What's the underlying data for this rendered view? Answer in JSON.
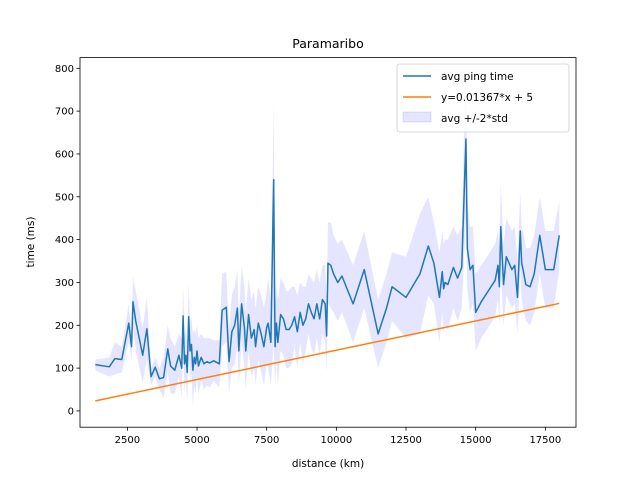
{
  "chart_data": {
    "type": "line",
    "title": "Paramaribo",
    "xlabel": "distance (km)",
    "ylabel": "time (ms)",
    "xlim": [
      800,
      18600
    ],
    "ylim": [
      -38,
      825
    ],
    "x_ticks": [
      2500,
      5000,
      7500,
      10000,
      12500,
      15000,
      17500
    ],
    "x_tick_labels": [
      "2500",
      "5000",
      "7500",
      "10000",
      "12500",
      "15000",
      "17500"
    ],
    "y_ticks": [
      0,
      100,
      200,
      300,
      400,
      500,
      600,
      700,
      800
    ],
    "y_tick_labels": [
      "0",
      "100",
      "200",
      "300",
      "400",
      "500",
      "600",
      "700",
      "800"
    ],
    "grid": false,
    "legend_position": "top-right",
    "legend": [
      "avg ping time",
      "y=0.01367*x + 5",
      "avg +/-2*std"
    ],
    "colors": {
      "avg": "#1f77b4",
      "fit": "#ff7f0e",
      "band": "#0000ff"
    },
    "series": [
      {
        "name": "avg ping time",
        "kind": "line",
        "x": [
          1350,
          1850,
          2050,
          2300,
          2550,
          2650,
          2700,
          2800,
          3050,
          3200,
          3350,
          3500,
          3650,
          3800,
          3950,
          4050,
          4200,
          4350,
          4450,
          4500,
          4550,
          4600,
          4650,
          4700,
          4750,
          4800,
          4850,
          4900,
          4950,
          5000,
          5050,
          5150,
          5250,
          5350,
          5450,
          5600,
          5800,
          5900,
          6050,
          6150,
          6250,
          6350,
          6450,
          6500,
          6600,
          6700,
          6750,
          6850,
          6950,
          7050,
          7100,
          7200,
          7300,
          7400,
          7500,
          7550,
          7650,
          7750,
          7800,
          7850,
          7900,
          8000,
          8100,
          8200,
          8300,
          8400,
          8500,
          8600,
          8700,
          8800,
          8900,
          9000,
          9100,
          9200,
          9300,
          9400,
          9500,
          9600,
          9650,
          9700,
          9800,
          9900,
          10050,
          10200,
          10600,
          11000,
          11500,
          11800,
          12000,
          12500,
          13000,
          13300,
          13500,
          13700,
          13800,
          13850,
          13900,
          14000,
          14200,
          14350,
          14500,
          14650,
          14700,
          14800,
          14900,
          15000,
          15200,
          15500,
          15700,
          15800,
          15850,
          15900,
          16000,
          16100,
          16300,
          16400,
          16500,
          16600,
          16650,
          16700,
          16800,
          16950,
          17100,
          17300,
          17500,
          17800,
          18000
        ],
        "y": [
          108,
          103,
          122,
          120,
          205,
          150,
          255,
          210,
          130,
          192,
          80,
          102,
          75,
          78,
          145,
          105,
          95,
          130,
          100,
          222,
          110,
          130,
          90,
          220,
          140,
          155,
          95,
          125,
          110,
          140,
          105,
          125,
          110,
          115,
          112,
          117,
          110,
          235,
          242,
          115,
          185,
          200,
          240,
          140,
          250,
          195,
          140,
          225,
          170,
          190,
          150,
          205,
          180,
          150,
          195,
          205,
          160,
          540,
          150,
          205,
          160,
          225,
          215,
          190,
          190,
          200,
          220,
          185,
          230,
          200,
          215,
          250,
          230,
          215,
          250,
          215,
          260,
          250,
          175,
          345,
          340,
          320,
          300,
          315,
          250,
          330,
          180,
          240,
          290,
          265,
          320,
          385,
          345,
          265,
          325,
          285,
          300,
          295,
          335,
          310,
          335,
          635,
          380,
          330,
          340,
          230,
          255,
          285,
          305,
          340,
          290,
          430,
          295,
          360,
          330,
          340,
          265,
          420,
          345,
          330,
          295,
          290,
          320,
          410,
          330,
          330,
          410
        ]
      },
      {
        "name": "y=0.01367*x + 5",
        "kind": "line",
        "x": [
          1350,
          18000
        ],
        "y": [
          23.5,
          251
        ]
      },
      {
        "name": "avg +/-2*std",
        "kind": "band",
        "x": [
          1350,
          1850,
          2050,
          2300,
          2550,
          2650,
          2700,
          2800,
          3050,
          3200,
          3350,
          3500,
          3650,
          3800,
          3950,
          4050,
          4200,
          4350,
          4450,
          4500,
          4550,
          4600,
          4650,
          4700,
          4750,
          4800,
          4850,
          4900,
          4950,
          5000,
          5050,
          5150,
          5250,
          5350,
          5450,
          5600,
          5800,
          5900,
          6050,
          6150,
          6250,
          6350,
          6450,
          6500,
          6600,
          6700,
          6750,
          6850,
          6950,
          7050,
          7100,
          7200,
          7300,
          7400,
          7500,
          7550,
          7650,
          7750,
          7800,
          7850,
          7900,
          8000,
          8100,
          8200,
          8300,
          8400,
          8500,
          8600,
          8700,
          8800,
          8900,
          9000,
          9100,
          9200,
          9300,
          9400,
          9500,
          9600,
          9650,
          9700,
          9800,
          9900,
          10050,
          10200,
          10600,
          11000,
          11500,
          11800,
          12000,
          12500,
          13000,
          13300,
          13500,
          13700,
          13800,
          13850,
          13900,
          14000,
          14200,
          14350,
          14500,
          14650,
          14700,
          14800,
          14900,
          15000,
          15200,
          15500,
          15700,
          15800,
          15850,
          15900,
          16000,
          16100,
          16300,
          16400,
          16500,
          16600,
          16650,
          16700,
          16800,
          16950,
          17100,
          17300,
          17500,
          17800,
          18000
        ],
        "lower": [
          95,
          80,
          85,
          90,
          160,
          120,
          195,
          140,
          65,
          120,
          60,
          80,
          50,
          30,
          90,
          40,
          40,
          80,
          30,
          150,
          45,
          70,
          20,
          140,
          70,
          90,
          10,
          60,
          40,
          80,
          40,
          70,
          50,
          60,
          55,
          70,
          55,
          150,
          160,
          40,
          100,
          110,
          150,
          60,
          160,
          100,
          50,
          140,
          80,
          100,
          60,
          120,
          90,
          60,
          110,
          100,
          60,
          160,
          60,
          120,
          60,
          140,
          130,
          100,
          100,
          110,
          150,
          100,
          160,
          110,
          140,
          180,
          150,
          130,
          170,
          130,
          180,
          160,
          90,
          250,
          240,
          230,
          210,
          230,
          160,
          240,
          100,
          160,
          210,
          170,
          180,
          270,
          250,
          160,
          230,
          180,
          200,
          190,
          240,
          210,
          240,
          450,
          280,
          230,
          250,
          140,
          170,
          200,
          220,
          260,
          200,
          330,
          200,
          270,
          240,
          250,
          180,
          330,
          260,
          240,
          210,
          200,
          230,
          320,
          240,
          240,
          330
        ],
        "upper": [
          120,
          125,
          160,
          150,
          250,
          180,
          315,
          280,
          195,
          265,
          100,
          125,
          100,
          125,
          200,
          170,
          150,
          180,
          170,
          295,
          175,
          190,
          160,
          300,
          210,
          220,
          180,
          190,
          180,
          200,
          170,
          180,
          170,
          170,
          170,
          165,
          165,
          320,
          325,
          190,
          270,
          290,
          330,
          220,
          340,
          290,
          230,
          310,
          260,
          280,
          240,
          290,
          270,
          240,
          280,
          310,
          260,
          720,
          240,
          290,
          260,
          310,
          300,
          280,
          280,
          290,
          290,
          270,
          300,
          290,
          290,
          320,
          310,
          300,
          330,
          300,
          340,
          340,
          260,
          440,
          440,
          410,
          390,
          400,
          340,
          420,
          260,
          320,
          370,
          360,
          460,
          500,
          440,
          370,
          420,
          390,
          400,
          400,
          430,
          410,
          430,
          820,
          480,
          430,
          430,
          320,
          340,
          370,
          390,
          420,
          380,
          530,
          390,
          450,
          420,
          430,
          350,
          510,
          430,
          420,
          380,
          380,
          410,
          500,
          420,
          420,
          490
        ]
      }
    ]
  }
}
